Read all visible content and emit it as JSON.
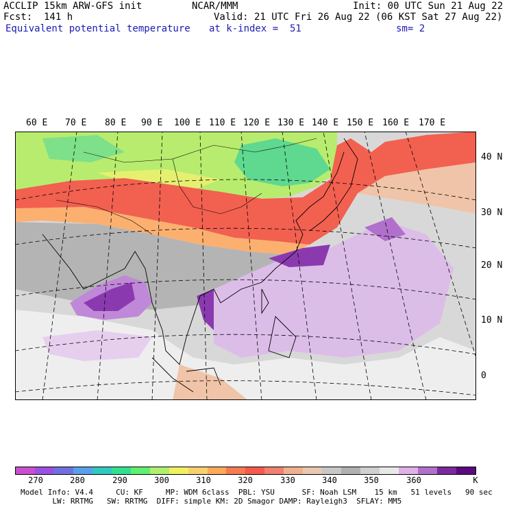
{
  "header": {
    "line1_left": "ACCLIP 15km ARW-GFS init",
    "line1_center": "NCAR/MMM",
    "line1_right": "Init: 00 UTC Sun 21 Aug 22",
    "line2_left": "Fcst:  141 h",
    "line2_right": "Valid: 21 UTC Fri 26 Aug 22 (06 KST Sat 27 Aug 22)",
    "line3_left": "Equivalent potential temperature",
    "line3_center": "at k-index =  51",
    "line3_right": "sm= 2"
  },
  "map": {
    "lon_labels": [
      "60 E",
      "70 E",
      "80 E",
      "90 E",
      "100 E",
      "110 E",
      "120 E",
      "130 E",
      "140 E",
      "150 E",
      "160 E",
      "170 E"
    ],
    "lat_labels": [
      "40 N",
      "30 N",
      "20 N",
      "10 N",
      "0"
    ],
    "colors": {
      "cool_land": "#9ee06a",
      "green": "#5fe08a",
      "yellow_green": "#c8f070",
      "orange": "#fcaa5a",
      "red": "#f55a4a",
      "gray": "#c8c8c8",
      "dark_gray": "#aaaaaa",
      "light_purple": "#d9b3e6",
      "purple": "#b070cc",
      "dark_purple": "#7a2a9e",
      "peach": "#f0c0a0",
      "white": "#efefef"
    }
  },
  "colorbar": {
    "tick_labels": [
      "270",
      "280",
      "290",
      "300",
      "310",
      "320",
      "330",
      "340",
      "350",
      "360",
      "K"
    ],
    "colors": [
      "#c850d0",
      "#9a50e0",
      "#7070e0",
      "#5aa0e8",
      "#30c8c0",
      "#30e090",
      "#60f070",
      "#b0f070",
      "#f0f060",
      "#f8d070",
      "#fcaa5a",
      "#f87a50",
      "#f55a4a",
      "#f08070",
      "#f0b090",
      "#e8c8b0",
      "#c8c8c8",
      "#b0b0b0",
      "#d0d0d0",
      "#e8e8e8",
      "#e0b0e8",
      "#b070cc",
      "#7a2a9e",
      "#5a0a7e"
    ]
  },
  "footer": {
    "line1": "Model Info: V4.4     CU: KF     MP: WDM 6class  PBL: YSU      SF: Noah LSM    15 km   51 levels   90 sec",
    "line2": "       LW: RRTMG   SW: RRTMG  DIFF: simple KM: 2D Smagor DAMP: Rayleigh3  SFLAY: MM5"
  }
}
